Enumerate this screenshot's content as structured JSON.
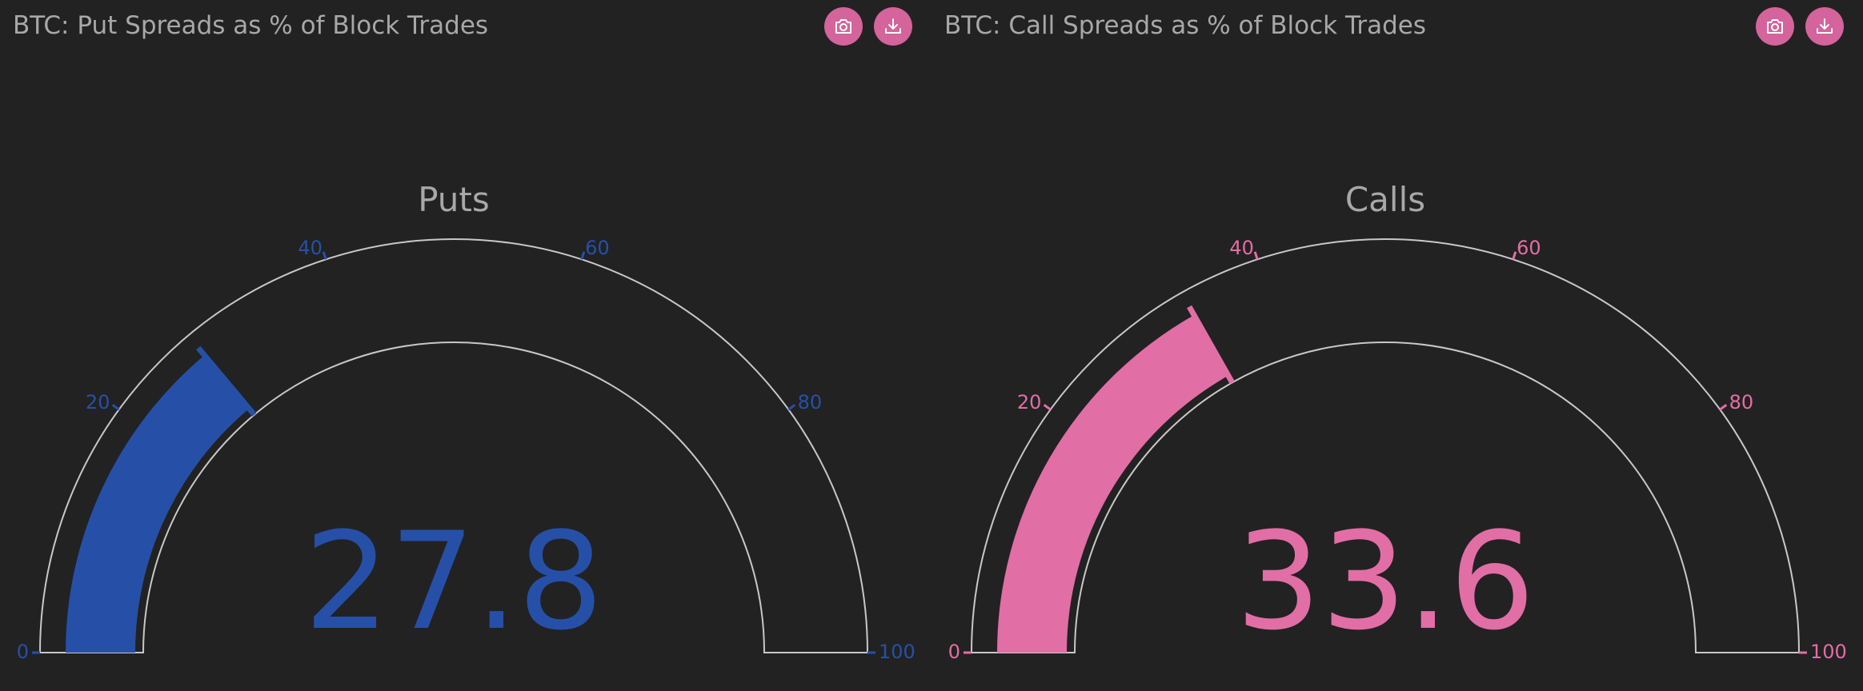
{
  "theme": {
    "background": "#222222",
    "button_color": "#d4649b",
    "outline_color": "#c8c8c8",
    "title_color": "#a8a8a8"
  },
  "panels": [
    {
      "title": "BTC: Put Spreads as % of Block Trades",
      "camera_icon": "camera-icon",
      "download_icon": "download-icon"
    },
    {
      "title": "BTC: Call Spreads as % of Block Trades",
      "camera_icon": "camera-icon",
      "download_icon": "download-icon"
    }
  ],
  "chart_data": [
    {
      "type": "gauge",
      "title": "Puts",
      "value": 27.8,
      "value_label": "27.8",
      "range": [
        0,
        100
      ],
      "ticks": [
        0,
        20,
        40,
        60,
        80,
        100
      ],
      "tick_labels": [
        "0",
        "20",
        "40",
        "60",
        "80",
        "100"
      ],
      "color": "#2650a8"
    },
    {
      "type": "gauge",
      "title": "Calls",
      "value": 33.6,
      "value_label": "33.6",
      "range": [
        0,
        100
      ],
      "ticks": [
        0,
        20,
        40,
        60,
        80,
        100
      ],
      "tick_labels": [
        "0",
        "20",
        "40",
        "60",
        "80",
        "100"
      ],
      "color": "#e26ea6"
    }
  ]
}
